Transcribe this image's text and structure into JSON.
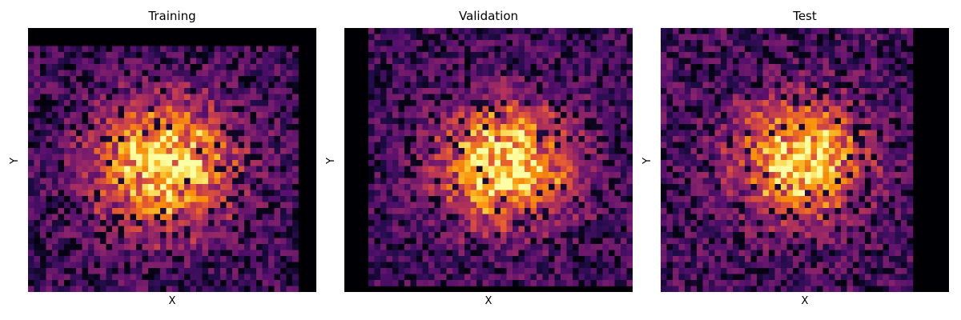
{
  "colors": {
    "background": "#ffffff",
    "colormap": "inferno",
    "low": "#000004",
    "high": "#fcffa4"
  },
  "chart_data": [
    {
      "type": "heatmap",
      "title": "Training",
      "xlabel": "X",
      "ylabel": "Y",
      "grid": false,
      "colormap": "inferno",
      "bins": [
        48,
        44
      ],
      "center": [
        0.47,
        0.52
      ],
      "spread": 0.17,
      "peak_density": 1.0,
      "background_density": 0.28,
      "empty_bins": {
        "right_columns": 3,
        "top_rows": 3
      }
    },
    {
      "type": "heatmap",
      "title": "Validation",
      "xlabel": "X",
      "ylabel": "Y",
      "grid": false,
      "colormap": "inferno",
      "bins": [
        48,
        44
      ],
      "center": [
        0.56,
        0.52
      ],
      "spread": 0.16,
      "peak_density": 1.0,
      "background_density": 0.28,
      "empty_bins": {
        "left_columns": 4,
        "bottom_rows": 1
      }
    },
    {
      "type": "heatmap",
      "title": "Test",
      "xlabel": "X",
      "ylabel": "Y",
      "grid": false,
      "colormap": "inferno",
      "bins": [
        48,
        44
      ],
      "center": [
        0.48,
        0.5
      ],
      "spread": 0.15,
      "peak_density": 1.0,
      "background_density": 0.3,
      "empty_bins": {
        "right_columns": 6
      }
    }
  ]
}
